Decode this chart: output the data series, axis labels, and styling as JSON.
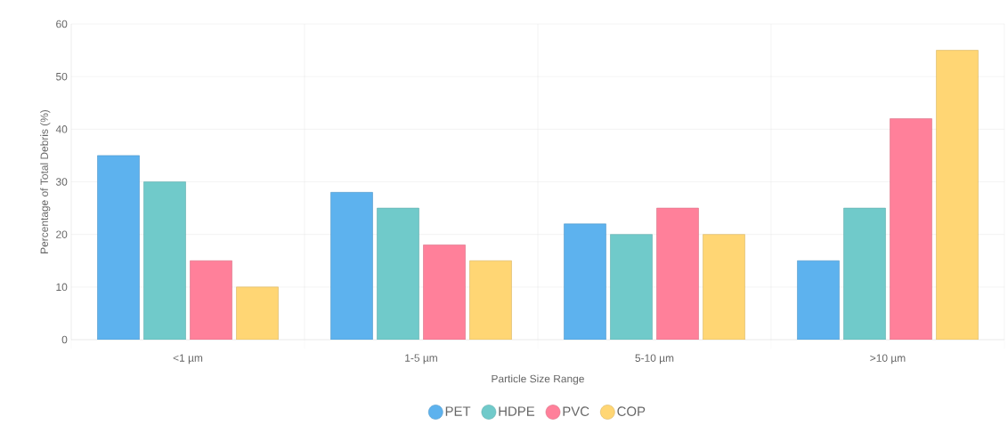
{
  "chart_data": {
    "type": "bar",
    "xlabel": "Particle Size Range",
    "ylabel": "Percentage of Total Debris (%)",
    "categories": [
      "<1 µm",
      "1-5 µm",
      "5-10 µm",
      ">10 µm"
    ],
    "series": [
      {
        "name": "PET",
        "color": "#5db2ee",
        "values": [
          35,
          28,
          22,
          15
        ]
      },
      {
        "name": "HDPE",
        "color": "#70caca",
        "values": [
          30,
          25,
          20,
          25
        ]
      },
      {
        "name": "PVC",
        "color": "#ff809a",
        "values": [
          15,
          18,
          25,
          42
        ]
      },
      {
        "name": "COP",
        "color": "#ffd674",
        "values": [
          10,
          15,
          20,
          55
        ]
      }
    ],
    "ylim": [
      0,
      60
    ],
    "yticks": [
      0,
      10,
      20,
      30,
      40,
      50,
      60
    ],
    "grid": true,
    "legend": "bottom"
  }
}
